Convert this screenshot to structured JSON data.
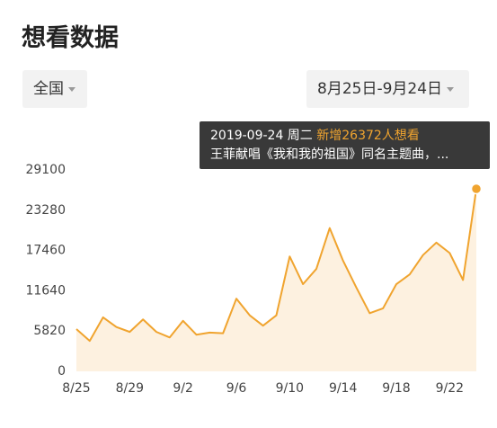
{
  "header": {
    "title": "想看数据"
  },
  "filters": {
    "region": "全国",
    "range": "8月25日-9月24日"
  },
  "tooltip": {
    "date": "2019-09-24 周二",
    "headline": "新增26372人想看",
    "event": "王菲献唱《我和我的祖国》同名主题曲，..."
  },
  "chart_data": {
    "type": "line",
    "categories": [
      "8/25",
      null,
      null,
      null,
      "8/29",
      null,
      null,
      null,
      "9/2",
      null,
      null,
      null,
      "9/6",
      null,
      null,
      null,
      "9/10",
      null,
      null,
      null,
      "9/14",
      null,
      null,
      null,
      "9/18",
      null,
      null,
      null,
      "9/22",
      null,
      null
    ],
    "series": [
      {
        "color": "#f0a42f",
        "values": [
          6100,
          4400,
          7800,
          6400,
          5700,
          7500,
          5700,
          4900,
          7300,
          5300,
          5600,
          5500,
          10500,
          8100,
          6600,
          8100,
          16600,
          12600,
          14800,
          20700,
          16000,
          12100,
          8400,
          9100,
          12600,
          14000,
          16800,
          18600,
          17100,
          13200,
          26372
        ]
      }
    ],
    "ylim": [
      0,
      29100
    ],
    "yticks": [
      0,
      5820,
      11640,
      17460,
      23280,
      29100
    ],
    "grid": false
  }
}
